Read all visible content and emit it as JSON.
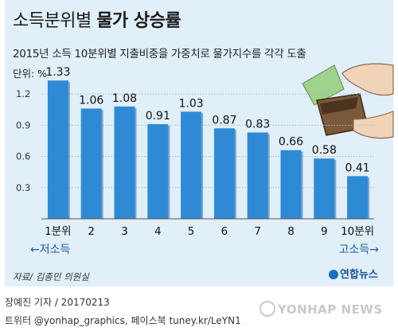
{
  "header": {
    "title_light": "소득분위별 ",
    "title_bold": "물가 상승률",
    "subtitle": "2015년 소득 10분위별 지출비중을 가중치로 물가지수를 각각 도출",
    "unit": "단위: %"
  },
  "chart_data": {
    "type": "bar",
    "categories": [
      "1분위",
      "2",
      "3",
      "4",
      "5",
      "6",
      "7",
      "8",
      "9",
      "10분위"
    ],
    "values": [
      1.33,
      1.06,
      1.08,
      0.91,
      1.03,
      0.87,
      0.83,
      0.66,
      0.58,
      0.41
    ],
    "value_labels": [
      "1.33",
      "1.06",
      "1.08",
      "0.91",
      "1.03",
      "0.87",
      "0.83",
      "0.66",
      "0.58",
      "0.41"
    ],
    "yticks": [
      "1.2",
      "0.9",
      "0.6",
      "0.3"
    ],
    "ytick_values": [
      1.2,
      0.9,
      0.6,
      0.3
    ],
    "ylim": [
      0,
      1.4
    ],
    "grid": true,
    "low_income_label": "←저소득",
    "high_income_label": "고소득→",
    "colors": {
      "bar": "#2f8ad6",
      "bar_shadow": "#1d5fa3",
      "grid": "#aab6c2",
      "background": "#e1eff8"
    }
  },
  "footer": {
    "source": "자료/ 김종민 의원실",
    "logo": "연합뉴스",
    "credit_line1": "장예진 기자 / 20170213",
    "credit_line2": "트위터 @yonhap_graphics, 페이스북 tuney.kr/LeYN1",
    "watermark": "YONHAP NEWS"
  }
}
